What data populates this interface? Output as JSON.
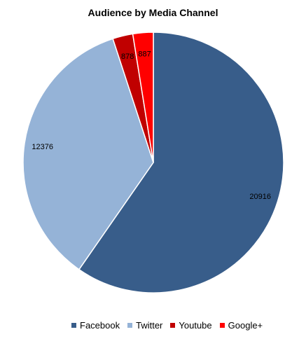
{
  "chart_data": {
    "type": "pie",
    "title": "Audience by Media Channel",
    "categories": [
      "Facebook",
      "Twitter",
      "Youtube",
      "Google+"
    ],
    "values": [
      20916,
      12376,
      878,
      887
    ],
    "colors": [
      "#385d8a",
      "#95b3d7",
      "#c00000",
      "#ff0000"
    ],
    "legend_position": "bottom",
    "start_angle": "top",
    "direction": "clockwise"
  }
}
